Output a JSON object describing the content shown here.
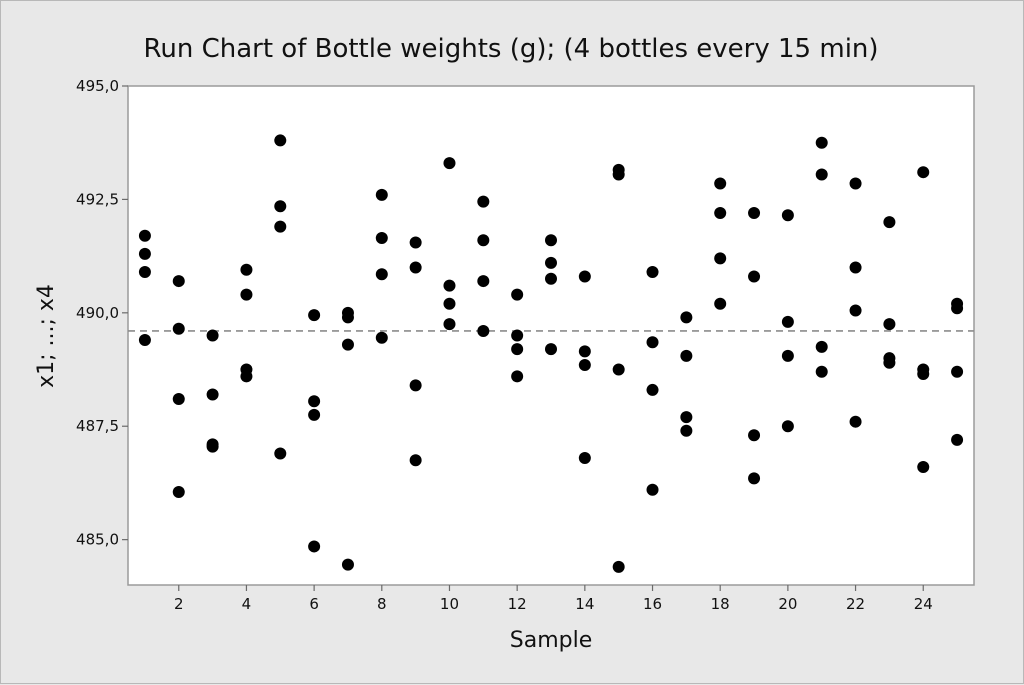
{
  "chart_data": {
    "type": "scatter",
    "title": "Run Chart of Bottle weights (g); (4 bottles every 15 min)",
    "xlabel": "Sample",
    "ylabel": "x1; ...; x4",
    "xlim": [
      0.5,
      25.5
    ],
    "ylim": [
      484.0,
      495.0
    ],
    "x_ticks": [
      2,
      4,
      6,
      8,
      10,
      12,
      14,
      16,
      18,
      20,
      22,
      24
    ],
    "x_tick_labels": [
      "2",
      "4",
      "6",
      "8",
      "10",
      "12",
      "14",
      "16",
      "18",
      "20",
      "22",
      "24"
    ],
    "y_ticks": [
      485.0,
      487.5,
      490.0,
      492.5,
      495.0
    ],
    "y_tick_labels": [
      "485,0",
      "487,5",
      "490,0",
      "492,5",
      "495,0"
    ],
    "reference_line": {
      "style": "dashed",
      "value": 489.6,
      "color": "#8c8c8c"
    },
    "grid": false,
    "marker_color": "#000000",
    "points": [
      {
        "x": 1,
        "y": 491.7
      },
      {
        "x": 1,
        "y": 491.3
      },
      {
        "x": 1,
        "y": 490.9
      },
      {
        "x": 1,
        "y": 489.4
      },
      {
        "x": 2,
        "y": 490.7
      },
      {
        "x": 2,
        "y": 489.65
      },
      {
        "x": 2,
        "y": 488.1
      },
      {
        "x": 2,
        "y": 486.05
      },
      {
        "x": 3,
        "y": 489.5
      },
      {
        "x": 3,
        "y": 488.2
      },
      {
        "x": 3,
        "y": 487.1
      },
      {
        "x": 3,
        "y": 487.05
      },
      {
        "x": 4,
        "y": 490.95
      },
      {
        "x": 4,
        "y": 490.4
      },
      {
        "x": 4,
        "y": 488.75
      },
      {
        "x": 4,
        "y": 488.6
      },
      {
        "x": 5,
        "y": 493.8
      },
      {
        "x": 5,
        "y": 492.35
      },
      {
        "x": 5,
        "y": 491.9
      },
      {
        "x": 5,
        "y": 486.9
      },
      {
        "x": 6,
        "y": 489.95
      },
      {
        "x": 6,
        "y": 488.05
      },
      {
        "x": 6,
        "y": 487.75
      },
      {
        "x": 6,
        "y": 484.85
      },
      {
        "x": 7,
        "y": 490.0
      },
      {
        "x": 7,
        "y": 489.9
      },
      {
        "x": 7,
        "y": 489.3
      },
      {
        "x": 7,
        "y": 484.45
      },
      {
        "x": 8,
        "y": 492.6
      },
      {
        "x": 8,
        "y": 491.65
      },
      {
        "x": 8,
        "y": 490.85
      },
      {
        "x": 8,
        "y": 489.45
      },
      {
        "x": 9,
        "y": 491.55
      },
      {
        "x": 9,
        "y": 491.0
      },
      {
        "x": 9,
        "y": 488.4
      },
      {
        "x": 9,
        "y": 486.75
      },
      {
        "x": 10,
        "y": 493.3
      },
      {
        "x": 10,
        "y": 490.6
      },
      {
        "x": 10,
        "y": 490.2
      },
      {
        "x": 10,
        "y": 489.75
      },
      {
        "x": 11,
        "y": 492.45
      },
      {
        "x": 11,
        "y": 491.6
      },
      {
        "x": 11,
        "y": 490.7
      },
      {
        "x": 11,
        "y": 489.6
      },
      {
        "x": 12,
        "y": 490.4
      },
      {
        "x": 12,
        "y": 489.5
      },
      {
        "x": 12,
        "y": 489.2
      },
      {
        "x": 12,
        "y": 488.6
      },
      {
        "x": 13,
        "y": 491.6
      },
      {
        "x": 13,
        "y": 491.1
      },
      {
        "x": 13,
        "y": 490.75
      },
      {
        "x": 13,
        "y": 489.2
      },
      {
        "x": 14,
        "y": 490.8
      },
      {
        "x": 14,
        "y": 489.15
      },
      {
        "x": 14,
        "y": 488.85
      },
      {
        "x": 14,
        "y": 486.8
      },
      {
        "x": 15,
        "y": 493.15
      },
      {
        "x": 15,
        "y": 493.05
      },
      {
        "x": 15,
        "y": 488.75
      },
      {
        "x": 15,
        "y": 484.4
      },
      {
        "x": 16,
        "y": 490.9
      },
      {
        "x": 16,
        "y": 489.35
      },
      {
        "x": 16,
        "y": 488.3
      },
      {
        "x": 16,
        "y": 486.1
      },
      {
        "x": 17,
        "y": 489.9
      },
      {
        "x": 17,
        "y": 489.05
      },
      {
        "x": 17,
        "y": 487.7
      },
      {
        "x": 17,
        "y": 487.4
      },
      {
        "x": 18,
        "y": 492.85
      },
      {
        "x": 18,
        "y": 492.2
      },
      {
        "x": 18,
        "y": 491.2
      },
      {
        "x": 18,
        "y": 490.2
      },
      {
        "x": 19,
        "y": 492.2
      },
      {
        "x": 19,
        "y": 490.8
      },
      {
        "x": 19,
        "y": 487.3
      },
      {
        "x": 19,
        "y": 486.35
      },
      {
        "x": 20,
        "y": 492.15
      },
      {
        "x": 20,
        "y": 489.8
      },
      {
        "x": 20,
        "y": 489.05
      },
      {
        "x": 20,
        "y": 487.5
      },
      {
        "x": 21,
        "y": 493.75
      },
      {
        "x": 21,
        "y": 493.05
      },
      {
        "x": 21,
        "y": 489.25
      },
      {
        "x": 21,
        "y": 488.7
      },
      {
        "x": 22,
        "y": 492.85
      },
      {
        "x": 22,
        "y": 491.0
      },
      {
        "x": 22,
        "y": 490.05
      },
      {
        "x": 22,
        "y": 487.6
      },
      {
        "x": 23,
        "y": 492.0
      },
      {
        "x": 23,
        "y": 489.75
      },
      {
        "x": 23,
        "y": 489.0
      },
      {
        "x": 23,
        "y": 488.9
      },
      {
        "x": 24,
        "y": 493.1
      },
      {
        "x": 24,
        "y": 488.75
      },
      {
        "x": 24,
        "y": 488.65
      },
      {
        "x": 24,
        "y": 486.6
      },
      {
        "x": 25,
        "y": 490.2
      },
      {
        "x": 25,
        "y": 490.1
      },
      {
        "x": 25,
        "y": 488.7
      },
      {
        "x": 25,
        "y": 487.2
      }
    ]
  }
}
